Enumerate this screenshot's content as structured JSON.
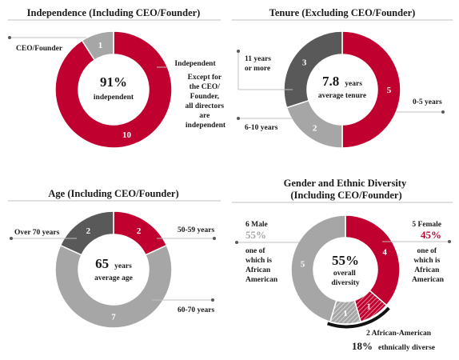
{
  "colors": {
    "red": "#c0002f",
    "dark_gray": "#595959",
    "light_gray": "#a6a6a6",
    "line": "#c0c0c0"
  },
  "chart_data": [
    {
      "type": "pie",
      "title": "Independence (Including CEO/Founder)",
      "categories": [
        "Independent",
        "CEO/Founder"
      ],
      "values": [
        10,
        1
      ],
      "center": {
        "value": "91%",
        "label": "independent"
      },
      "labels": {
        "founder": "CEO/Founder",
        "independent": "Independent",
        "independent_note": [
          "Except for",
          "the CEO/",
          "Founder,",
          "all directors",
          "are",
          "independent"
        ]
      }
    },
    {
      "type": "pie",
      "title": "Tenure (Excluding CEO/Founder)",
      "categories": [
        "0-5 years",
        "6-10 years",
        "11 years or more"
      ],
      "values": [
        5,
        2,
        3
      ],
      "center": {
        "value": "7.8",
        "unit": "years",
        "label": "average tenure"
      },
      "labels": {
        "zero_five": "0-5 years",
        "six_ten": "6-10 years",
        "eleven_plus": [
          "11 years",
          "or more"
        ]
      }
    },
    {
      "type": "pie",
      "title": "Age (Including CEO/Founder)",
      "categories": [
        "50-59 years",
        "60-70 years",
        "Over 70 years"
      ],
      "values": [
        2,
        7,
        2
      ],
      "center": {
        "value": "65",
        "unit": "years",
        "label": "average age"
      },
      "labels": {
        "fifty": "50-59 years",
        "sixty": "60-70 years",
        "over70": "Over 70 years"
      }
    },
    {
      "type": "pie",
      "title": [
        "Gender and Ethnic Diversity",
        "(Including CEO/Founder)"
      ],
      "categories": [
        "Female",
        "Female, African American",
        "Male, African American",
        "Male"
      ],
      "values": [
        4,
        1,
        1,
        5
      ],
      "center": {
        "value": "55%",
        "label": [
          "overall",
          "diversity"
        ]
      },
      "labels": {
        "male_count": "6 Male",
        "male_pct": "55%",
        "male_note": [
          "one of",
          "which is",
          "African",
          "American"
        ],
        "female_count": "5 Female",
        "female_pct": "45%",
        "female_note": [
          "one of",
          "which is",
          "African",
          "American"
        ],
        "aa": "2 African-American",
        "ethnic_pct": "18%",
        "ethnic_label": "ethnically diverse"
      }
    }
  ]
}
